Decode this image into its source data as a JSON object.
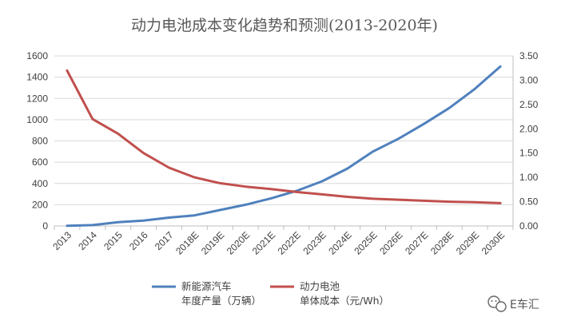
{
  "title": "动力电池成本变化趋势和预测(2013-2020年)",
  "watermark": {
    "text": "E车汇",
    "icon": "wechat-official-account-icon"
  },
  "colors": {
    "ev_series": "#4f81bd",
    "battery_series": "#c0504d",
    "grid": "#d9d9d9",
    "axis": "#bfbfbf",
    "text": "#404040"
  },
  "chart_data": {
    "type": "line",
    "title": "动力电池成本变化趋势和预测(2013-2020年)",
    "categories": [
      "2013",
      "2014",
      "2015",
      "2016",
      "2017",
      "2018E",
      "2019E",
      "2020E",
      "2021E",
      "2022E",
      "2023E",
      "2024E",
      "2025E",
      "2026E",
      "2027E",
      "2028E",
      "2029E",
      "2030E"
    ],
    "y_left": {
      "ylim": [
        0,
        1600
      ],
      "ticks": [
        "0",
        "200",
        "400",
        "600",
        "800",
        "1000",
        "1200",
        "1400",
        "1600"
      ]
    },
    "y_right": {
      "ylim": [
        0,
        3.5
      ],
      "ticks": [
        "0.00",
        "0.50",
        "1.00",
        "1.50",
        "2.00",
        "2.50",
        "3.00",
        "3.50"
      ]
    },
    "grid": true,
    "legend_position": "bottom",
    "series": [
      {
        "name": "新能源汽车年度产量（万辆）",
        "legend_lines": [
          "新能源汽车",
          "年度产量（万辆）"
        ],
        "axis": "left",
        "color": "#4f81bd",
        "values": [
          2,
          8,
          35,
          51,
          79,
          100,
          150,
          200,
          260,
          330,
          420,
          540,
          700,
          820,
          960,
          1110,
          1290,
          1500
        ]
      },
      {
        "name": "动力电池单体成本（元/Wh）",
        "legend_lines": [
          "动力电池",
          "单体成本（元/Wh）"
        ],
        "axis": "right",
        "color": "#c0504d",
        "values": [
          3.2,
          2.2,
          1.9,
          1.5,
          1.2,
          1.0,
          0.88,
          0.81,
          0.76,
          0.7,
          0.65,
          0.6,
          0.56,
          0.54,
          0.52,
          0.5,
          0.49,
          0.47
        ]
      }
    ]
  }
}
